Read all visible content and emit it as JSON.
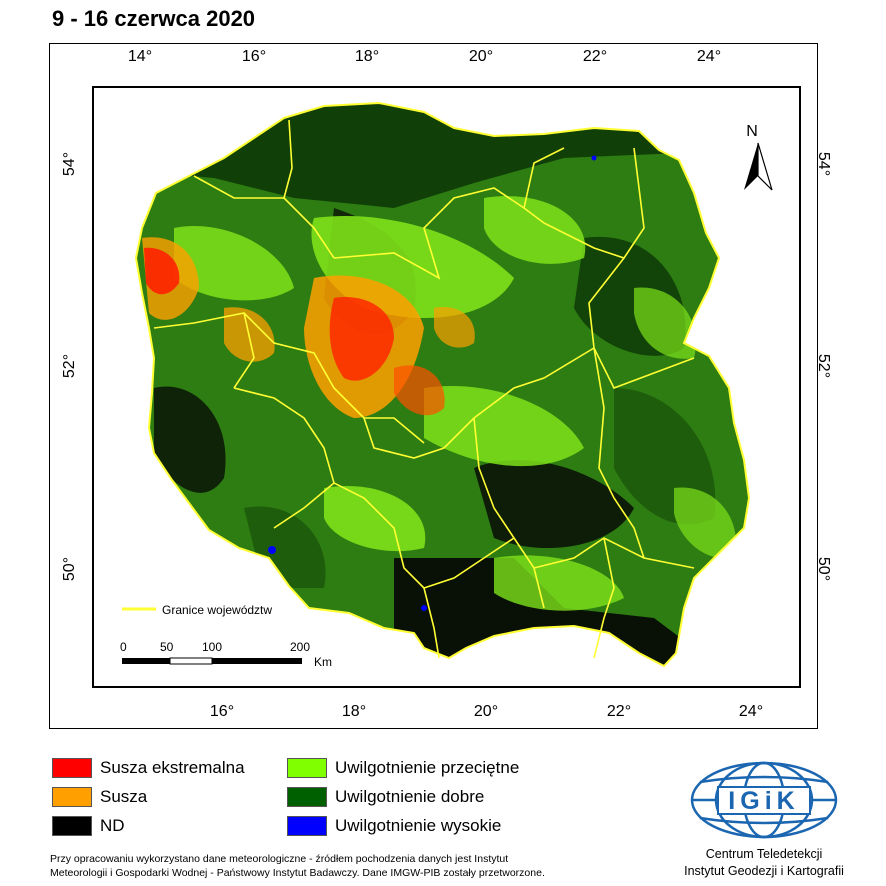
{
  "title": "9 - 16 czerwca 2020",
  "top_ticks": [
    "14°",
    "16°",
    "18°",
    "20°",
    "22°",
    "24°"
  ],
  "bottom_ticks": [
    "16°",
    "18°",
    "20°",
    "22°",
    "24°"
  ],
  "left_ticks": [
    "54°",
    "52°",
    "50°"
  ],
  "right_ticks": [
    "54°",
    "52°",
    "50°"
  ],
  "north_label": "N",
  "boundary_legend": "Granice województw",
  "scalebar": {
    "labels": [
      "0",
      "50",
      "100",
      "200"
    ],
    "unit": "Km"
  },
  "legend": [
    {
      "label": "Susza ekstremalna",
      "color": "#ff0000"
    },
    {
      "label": "Susza",
      "color": "#ffa000"
    },
    {
      "label": "ND",
      "color": "#000000"
    },
    {
      "label": "Uwilgotnienie przeciętne",
      "color": "#80ff00"
    },
    {
      "label": "Uwilgotnienie dobre",
      "color": "#006000"
    },
    {
      "label": "Uwilgotnienie wysokie",
      "color": "#0000ff"
    }
  ],
  "credit": {
    "line1": "Przy opracowaniu wykorzystano dane meteorologiczne - źródłem pochodzenia danych jest Instytut",
    "line2": "Meteorologii i Gospodarki Wodnej - Państwowy Instytut Badawczy. Dane IMGW-PIB zostały przetworzone."
  },
  "logo_text": "IGiK",
  "logo_caption": {
    "line1": "Centrum Teledetekcji",
    "line2": "Instytut Geodezji i Kartografii"
  },
  "colors": {
    "boundary": "#ffff33",
    "land_green": "#2e7d12",
    "dark_green": "#0d3a08",
    "light_green": "#7ee21a",
    "logo_blue": "#1b66b0"
  }
}
